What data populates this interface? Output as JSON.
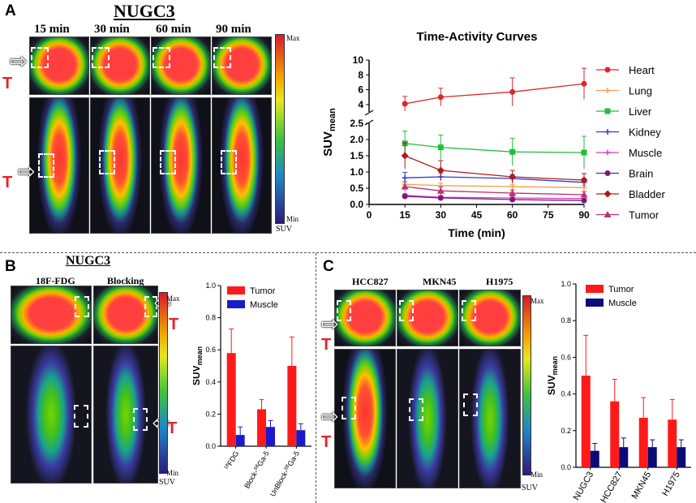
{
  "panels": {
    "A": {
      "letter": "A",
      "title": "NUGC3",
      "timepoints": [
        "15 min",
        "30 min",
        "60 min",
        "90 min"
      ],
      "colorbar": {
        "max": "Max",
        "min": "Min",
        "unit": "SUV"
      },
      "tumor_marker": "T"
    },
    "B": {
      "letter": "B",
      "title": "NUGC3",
      "img_labels": [
        "18F-FDG",
        "Blocking"
      ],
      "colorbar": {
        "max": "Max",
        "min": "Min",
        "unit": "SUV"
      },
      "tumor_marker": "T"
    },
    "C": {
      "letter": "C",
      "img_labels": [
        "HCC827",
        "MKN45",
        "H1975"
      ],
      "colorbar": {
        "max": "Max",
        "min": "Min",
        "unit": "SUV"
      },
      "tumor_marker": "T"
    }
  },
  "chart_data": [
    {
      "type": "line",
      "title": "Time-Activity Curves",
      "xlabel": "Time (min)",
      "ylabel": "SUVmean",
      "x": [
        15,
        30,
        60,
        90
      ],
      "xticks": [
        "0",
        "15",
        "30",
        "45",
        "60",
        "75",
        "90"
      ],
      "yticks_lower": [
        "0.0",
        "0.5",
        "1.0",
        "1.5",
        "2.0",
        "2.5"
      ],
      "yticks_upper": [
        "4",
        "6",
        "8",
        "10"
      ],
      "ylim_lower": [
        0,
        2.5
      ],
      "ylim_upper": [
        3,
        10
      ],
      "series": [
        {
          "name": "Heart",
          "color": "#d62a2a",
          "marker": "circle",
          "values": [
            4.1,
            5.0,
            5.7,
            6.8
          ],
          "err": [
            1.0,
            1.2,
            1.9,
            2.1
          ]
        },
        {
          "name": "Lung",
          "color": "#f0a24a",
          "marker": "plus",
          "values": [
            0.62,
            0.58,
            0.55,
            0.52
          ],
          "err": [
            0.08,
            0.08,
            0.07,
            0.07
          ]
        },
        {
          "name": "Liver",
          "color": "#1fbf3a",
          "marker": "square",
          "values": [
            1.88,
            1.76,
            1.62,
            1.6
          ],
          "err": [
            0.38,
            0.38,
            0.42,
            0.5
          ]
        },
        {
          "name": "Kidney",
          "color": "#2b3bd6",
          "marker": "plus",
          "values": [
            0.82,
            0.85,
            0.8,
            0.68
          ],
          "err": [
            0.17,
            0.12,
            0.12,
            0.12
          ]
        },
        {
          "name": "Muscle",
          "color": "#d43cd4",
          "marker": "plus",
          "values": [
            0.28,
            0.22,
            0.2,
            0.18
          ],
          "err": [
            0.05,
            0.05,
            0.05,
            0.05
          ]
        },
        {
          "name": "Brain",
          "color": "#7a1a7a",
          "marker": "circle",
          "values": [
            0.25,
            0.2,
            0.15,
            0.12
          ],
          "err": [
            0.05,
            0.04,
            0.04,
            0.03
          ]
        },
        {
          "name": "Bladder",
          "color": "#b01a1a",
          "marker": "diamond",
          "values": [
            1.5,
            1.05,
            0.85,
            0.75
          ],
          "err": [
            0.4,
            0.3,
            0.2,
            0.2
          ]
        },
        {
          "name": "Tumor",
          "color": "#c0306a",
          "marker": "triangle",
          "values": [
            0.55,
            0.42,
            0.35,
            0.3
          ],
          "err": [
            0.15,
            0.12,
            0.1,
            0.1
          ]
        }
      ]
    },
    {
      "type": "bar",
      "ylabel": "SUVmean",
      "categories": [
        "18FDG",
        "Block-68Ga-5",
        "UnBlock-68Ga-5"
      ],
      "category_labels": [
        {
          "sup": "18",
          "main": "FDG"
        },
        {
          "pre": "Block-",
          "sup": "68",
          "main": "Ga-5"
        },
        {
          "pre": "UnBlock-",
          "sup": "68",
          "main": "Ga-5"
        }
      ],
      "yticks": [
        "0.0",
        "0.2",
        "0.4",
        "0.6",
        "0.8",
        "1.0"
      ],
      "ylim": [
        0,
        1.0
      ],
      "series": [
        {
          "name": "Tumor",
          "color": "#ff1a1a",
          "values": [
            0.58,
            0.23,
            0.5
          ],
          "err": [
            0.15,
            0.06,
            0.18
          ]
        },
        {
          "name": "Muscle",
          "color": "#1a1acc",
          "values": [
            0.07,
            0.12,
            0.1
          ],
          "err": [
            0.05,
            0.04,
            0.04
          ]
        }
      ]
    },
    {
      "type": "bar",
      "ylabel": "SUVmean",
      "categories": [
        "NUGC3",
        "HCC827",
        "MKN45",
        "H1975"
      ],
      "yticks": [
        "0.0",
        "0.2",
        "0.4",
        "0.6",
        "0.8",
        "1.0"
      ],
      "ylim": [
        0,
        1.0
      ],
      "series": [
        {
          "name": "Tumor",
          "color": "#ff1a1a",
          "values": [
            0.5,
            0.36,
            0.27,
            0.26
          ],
          "err": [
            0.22,
            0.12,
            0.11,
            0.11
          ]
        },
        {
          "name": "Muscle",
          "color": "#0a0a78",
          "values": [
            0.09,
            0.11,
            0.11,
            0.11
          ],
          "err": [
            0.04,
            0.05,
            0.04,
            0.04
          ]
        }
      ]
    }
  ]
}
